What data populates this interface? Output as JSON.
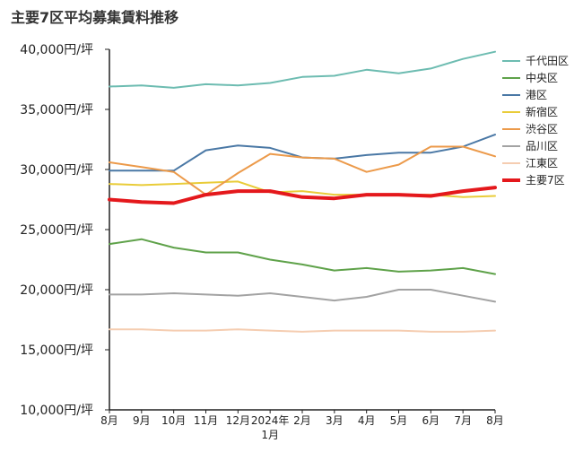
{
  "chart_data": {
    "type": "line",
    "title": "主要7区平均募集賃料推移",
    "xlabel": "",
    "ylabel": "",
    "ylim": [
      10000,
      40000
    ],
    "yticks": [
      "10,000円/坪",
      "15,000円/坪",
      "20,000円/坪",
      "25,000円/坪",
      "30,000円/坪",
      "35,000円/坪",
      "40,000円/坪"
    ],
    "categories": [
      "8月",
      "9月",
      "10月",
      "11月",
      "12月",
      "2024年\n1月",
      "2月",
      "3月",
      "4月",
      "5月",
      "6月",
      "7月",
      "8月"
    ],
    "grid": false,
    "legend_position": "right",
    "series": [
      {
        "name": "千代田区",
        "color": "#6dbcb1",
        "width": 2,
        "values": [
          36900,
          37000,
          36800,
          37100,
          37000,
          37200,
          37700,
          37800,
          38300,
          38000,
          38400,
          39200,
          39800
        ]
      },
      {
        "name": "中央区",
        "color": "#5fa24a",
        "width": 2,
        "values": [
          23800,
          24200,
          23500,
          23100,
          23100,
          22500,
          22100,
          21600,
          21800,
          21500,
          21600,
          21800,
          21300
        ]
      },
      {
        "name": "港区",
        "color": "#4a78a5",
        "width": 2,
        "values": [
          29900,
          29900,
          29900,
          31600,
          32000,
          31800,
          31000,
          30900,
          31200,
          31400,
          31400,
          31900,
          32900
        ]
      },
      {
        "name": "新宿区",
        "color": "#e9cc39",
        "width": 2,
        "values": [
          28800,
          28700,
          28800,
          28900,
          29000,
          28100,
          28200,
          27900,
          27900,
          27900,
          27900,
          27700,
          27800
        ]
      },
      {
        "name": "渋谷区",
        "color": "#ec9a4a",
        "width": 2,
        "values": [
          30600,
          30200,
          29800,
          27900,
          29700,
          31300,
          31000,
          30900,
          29800,
          30400,
          31900,
          31900,
          31100
        ]
      },
      {
        "name": "品川区",
        "color": "#a3a3a3",
        "width": 2,
        "values": [
          19600,
          19600,
          19700,
          19600,
          19500,
          19700,
          19400,
          19100,
          19400,
          20000,
          20000,
          19500,
          19000
        ]
      },
      {
        "name": "江東区",
        "color": "#f5cdb1",
        "width": 2,
        "values": [
          16700,
          16700,
          16600,
          16600,
          16700,
          16600,
          16500,
          16600,
          16600,
          16600,
          16500,
          16500,
          16600
        ]
      },
      {
        "name": "主要7区",
        "color": "#e4181c",
        "width": 4,
        "values": [
          27500,
          27300,
          27200,
          27900,
          28200,
          28200,
          27700,
          27600,
          27900,
          27900,
          27800,
          28200,
          28500
        ]
      }
    ]
  }
}
